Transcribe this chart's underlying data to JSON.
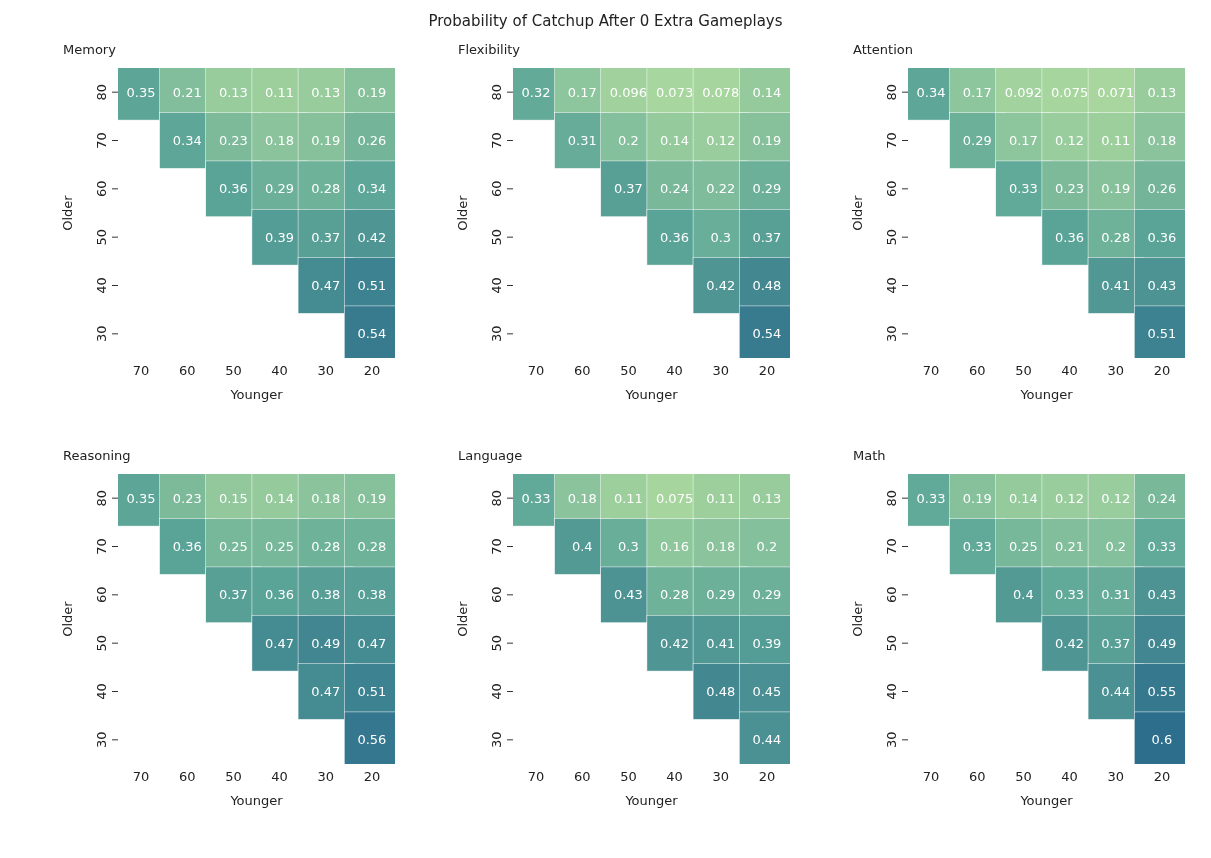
{
  "chart_data": [
    {
      "type": "heatmap",
      "title": "Memory",
      "annotations": [
        "Probability of Catchup After 0 Extra Gameplays"
      ],
      "xlabel": "Younger",
      "ylabel": "Older",
      "categories": [
        "70",
        "60",
        "50",
        "40",
        "30",
        "20"
      ],
      "y_categories": [
        "80",
        "70",
        "60",
        "50",
        "40",
        "30"
      ],
      "data_labels": true,
      "cells": [
        [
          0.35,
          0.21,
          0.13,
          0.11,
          0.13,
          0.19
        ],
        [
          null,
          0.34,
          0.23,
          0.18,
          0.19,
          0.26
        ],
        [
          null,
          null,
          0.36,
          0.29,
          0.28,
          0.34
        ],
        [
          null,
          null,
          null,
          0.39,
          0.37,
          0.42
        ],
        [
          null,
          null,
          null,
          null,
          0.47,
          0.51
        ],
        [
          null,
          null,
          null,
          null,
          null,
          0.54
        ]
      ]
    },
    {
      "type": "heatmap",
      "title": "Flexibility",
      "xlabel": "Younger",
      "ylabel": "Older",
      "categories": [
        "70",
        "60",
        "50",
        "40",
        "30",
        "20"
      ],
      "y_categories": [
        "80",
        "70",
        "60",
        "50",
        "40",
        "30"
      ],
      "data_labels": true,
      "cells": [
        [
          0.32,
          0.17,
          0.096,
          0.073,
          0.078,
          0.14
        ],
        [
          null,
          0.31,
          0.2,
          0.14,
          0.12,
          0.19
        ],
        [
          null,
          null,
          0.37,
          0.24,
          0.22,
          0.29
        ],
        [
          null,
          null,
          null,
          0.36,
          0.3,
          0.37
        ],
        [
          null,
          null,
          null,
          null,
          0.42,
          0.48
        ],
        [
          null,
          null,
          null,
          null,
          null,
          0.54
        ]
      ]
    },
    {
      "type": "heatmap",
      "title": "Attention",
      "xlabel": "Younger",
      "ylabel": "Older",
      "categories": [
        "70",
        "60",
        "50",
        "40",
        "30",
        "20"
      ],
      "y_categories": [
        "80",
        "70",
        "60",
        "50",
        "40",
        "30"
      ],
      "data_labels": true,
      "cells": [
        [
          0.34,
          0.17,
          0.092,
          0.075,
          0.071,
          0.13
        ],
        [
          null,
          0.29,
          0.17,
          0.12,
          0.11,
          0.18
        ],
        [
          null,
          null,
          0.33,
          0.23,
          0.19,
          0.26
        ],
        [
          null,
          null,
          null,
          0.36,
          0.28,
          0.36
        ],
        [
          null,
          null,
          null,
          null,
          0.41,
          0.43
        ],
        [
          null,
          null,
          null,
          null,
          null,
          0.51
        ]
      ]
    },
    {
      "type": "heatmap",
      "title": "Reasoning",
      "xlabel": "Younger",
      "ylabel": "Older",
      "categories": [
        "70",
        "60",
        "50",
        "40",
        "30",
        "20"
      ],
      "y_categories": [
        "80",
        "70",
        "60",
        "50",
        "40",
        "30"
      ],
      "data_labels": true,
      "cells": [
        [
          0.35,
          0.23,
          0.15,
          0.14,
          0.18,
          0.19
        ],
        [
          null,
          0.36,
          0.25,
          0.25,
          0.28,
          0.28
        ],
        [
          null,
          null,
          0.37,
          0.36,
          0.38,
          0.38
        ],
        [
          null,
          null,
          null,
          0.47,
          0.49,
          0.47
        ],
        [
          null,
          null,
          null,
          null,
          0.47,
          0.51
        ],
        [
          null,
          null,
          null,
          null,
          null,
          0.56
        ]
      ]
    },
    {
      "type": "heatmap",
      "title": "Language",
      "xlabel": "Younger",
      "ylabel": "Older",
      "categories": [
        "70",
        "60",
        "50",
        "40",
        "30",
        "20"
      ],
      "y_categories": [
        "80",
        "70",
        "60",
        "50",
        "40",
        "30"
      ],
      "data_labels": true,
      "cells": [
        [
          0.33,
          0.18,
          0.11,
          0.075,
          0.11,
          0.13
        ],
        [
          null,
          0.4,
          0.3,
          0.16,
          0.18,
          0.2
        ],
        [
          null,
          null,
          0.43,
          0.28,
          0.29,
          0.29
        ],
        [
          null,
          null,
          null,
          0.42,
          0.41,
          0.39
        ],
        [
          null,
          null,
          null,
          null,
          0.48,
          0.45
        ],
        [
          null,
          null,
          null,
          null,
          null,
          0.44
        ]
      ]
    },
    {
      "type": "heatmap",
      "title": "Math",
      "xlabel": "Younger",
      "ylabel": "Older",
      "categories": [
        "70",
        "60",
        "50",
        "40",
        "30",
        "20"
      ],
      "y_categories": [
        "80",
        "70",
        "60",
        "50",
        "40",
        "30"
      ],
      "data_labels": true,
      "cells": [
        [
          0.33,
          0.19,
          0.14,
          0.12,
          0.12,
          0.24
        ],
        [
          null,
          0.33,
          0.25,
          0.21,
          0.2,
          0.33
        ],
        [
          null,
          null,
          0.4,
          0.33,
          0.31,
          0.43
        ],
        [
          null,
          null,
          null,
          0.42,
          0.37,
          0.49
        ],
        [
          null,
          null,
          null,
          null,
          0.44,
          0.55
        ],
        [
          null,
          null,
          null,
          null,
          null,
          0.6
        ]
      ]
    }
  ]
}
